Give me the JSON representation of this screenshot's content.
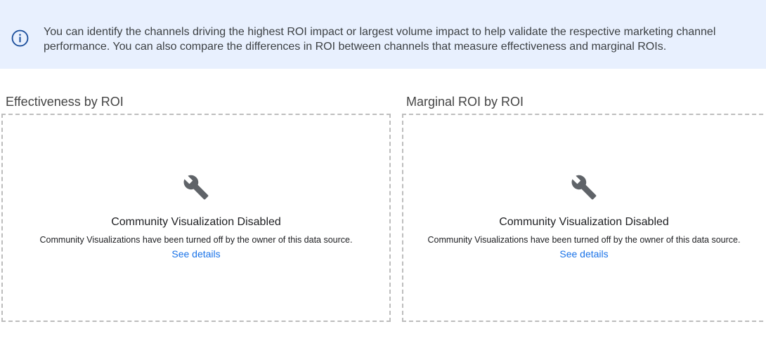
{
  "banner": {
    "icon": "info-icon",
    "text": "You can identify the channels driving the highest ROI impact or largest volume impact to help validate the respective marketing channel performance. You can also compare the differences in ROI between channels that measure effectiveness and marginal ROIs."
  },
  "sections": [
    {
      "title": "Effectiveness by ROI"
    },
    {
      "title": "Marginal ROI by ROI"
    }
  ],
  "panel": {
    "icon": "wrench-icon",
    "title": "Community Visualization Disabled",
    "description": "Community Visualizations have been turned off by the owner of this data source.",
    "link": "See details"
  },
  "colors": {
    "banner_bg": "#e8f0fe",
    "info_icon": "#1c4f9c",
    "link": "#1a73e8",
    "icon_gray": "#5f6368"
  }
}
